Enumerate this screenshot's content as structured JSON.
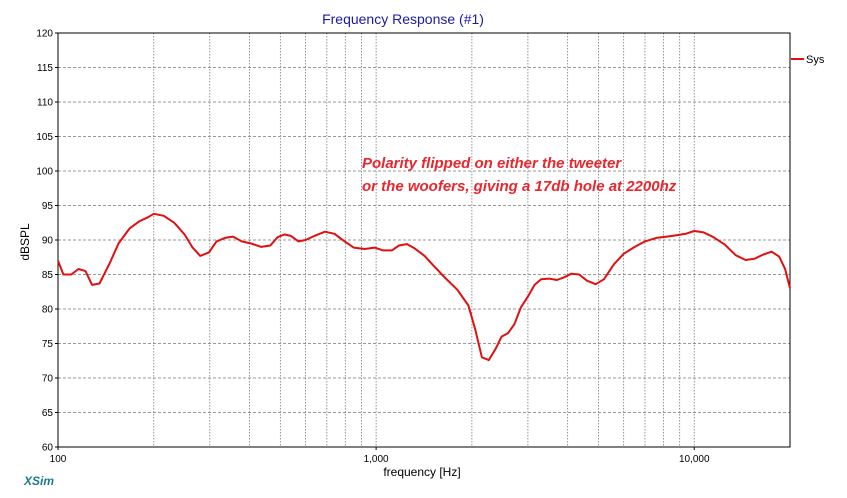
{
  "app": {
    "brand": "XSim"
  },
  "chart_data": {
    "type": "line",
    "title": "Frequency Response (#1)",
    "xlabel": "frequency [Hz]",
    "ylabel": "dBSPL",
    "x_scale": "log",
    "xlim": [
      100,
      20000
    ],
    "ylim": [
      60,
      120
    ],
    "grid": true,
    "legend_position": "right",
    "x_tick_labels": [
      {
        "value": 100,
        "label": "100"
      },
      {
        "value": 1000,
        "label": "1,000"
      },
      {
        "value": 10000,
        "label": "10,000"
      }
    ],
    "y_tick_labels": [
      "60",
      "65",
      "70",
      "75",
      "80",
      "85",
      "90",
      "95",
      "100",
      "105",
      "110",
      "115",
      "120"
    ],
    "annotation": {
      "lines": [
        "Polarity flipped on either the tweeter",
        "or the woofers, giving  a 17db hole at 2200hz"
      ],
      "color": "#e8262e"
    },
    "series": [
      {
        "name": "Sys",
        "color": "#e01010",
        "points": [
          [
            100,
            87
          ],
          [
            104,
            85
          ],
          [
            110,
            85
          ],
          [
            116,
            85.8
          ],
          [
            122,
            85.5
          ],
          [
            128,
            83.5
          ],
          [
            135,
            83.7
          ],
          [
            145,
            86.5
          ],
          [
            155,
            89.5
          ],
          [
            168,
            91.7
          ],
          [
            180,
            92.7
          ],
          [
            192,
            93.3
          ],
          [
            200,
            93.8
          ],
          [
            215,
            93.5
          ],
          [
            232,
            92.5
          ],
          [
            250,
            90.8
          ],
          [
            265,
            88.9
          ],
          [
            280,
            87.7
          ],
          [
            298,
            88.2
          ],
          [
            315,
            89.8
          ],
          [
            335,
            90.3
          ],
          [
            355,
            90.5
          ],
          [
            378,
            89.8
          ],
          [
            405,
            89.5
          ],
          [
            435,
            89
          ],
          [
            465,
            89.2
          ],
          [
            490,
            90.4
          ],
          [
            515,
            90.8
          ],
          [
            540,
            90.6
          ],
          [
            570,
            89.8
          ],
          [
            600,
            90
          ],
          [
            640,
            90.6
          ],
          [
            690,
            91.2
          ],
          [
            740,
            90.9
          ],
          [
            790,
            89.9
          ],
          [
            850,
            88.9
          ],
          [
            920,
            88.7
          ],
          [
            990,
            88.9
          ],
          [
            1050,
            88.5
          ],
          [
            1120,
            88.5
          ],
          [
            1180,
            89.2
          ],
          [
            1250,
            89.4
          ],
          [
            1320,
            88.8
          ],
          [
            1420,
            87.7
          ],
          [
            1520,
            86.2
          ],
          [
            1650,
            84.5
          ],
          [
            1800,
            82.8
          ],
          [
            1950,
            80.5
          ],
          [
            2050,
            77
          ],
          [
            2150,
            73
          ],
          [
            2260,
            72.6
          ],
          [
            2380,
            74.3
          ],
          [
            2480,
            76
          ],
          [
            2600,
            76.5
          ],
          [
            2720,
            77.8
          ],
          [
            2850,
            80.2
          ],
          [
            3000,
            81.8
          ],
          [
            3150,
            83.5
          ],
          [
            3300,
            84.3
          ],
          [
            3500,
            84.4
          ],
          [
            3700,
            84.2
          ],
          [
            3900,
            84.6
          ],
          [
            4100,
            85.1
          ],
          [
            4350,
            85
          ],
          [
            4600,
            84.1
          ],
          [
            4900,
            83.6
          ],
          [
            5200,
            84.3
          ],
          [
            5600,
            86.5
          ],
          [
            6000,
            88
          ],
          [
            6500,
            89
          ],
          [
            7000,
            89.8
          ],
          [
            7600,
            90.3
          ],
          [
            8200,
            90.5
          ],
          [
            8800,
            90.7
          ],
          [
            9400,
            90.9
          ],
          [
            10000,
            91.3
          ],
          [
            10700,
            91.1
          ],
          [
            11500,
            90.4
          ],
          [
            12500,
            89.3
          ],
          [
            13500,
            87.8
          ],
          [
            14500,
            87.1
          ],
          [
            15500,
            87.3
          ],
          [
            16500,
            87.9
          ],
          [
            17500,
            88.3
          ],
          [
            18500,
            87.6
          ],
          [
            19300,
            85.8
          ],
          [
            20000,
            83
          ]
        ]
      }
    ]
  }
}
